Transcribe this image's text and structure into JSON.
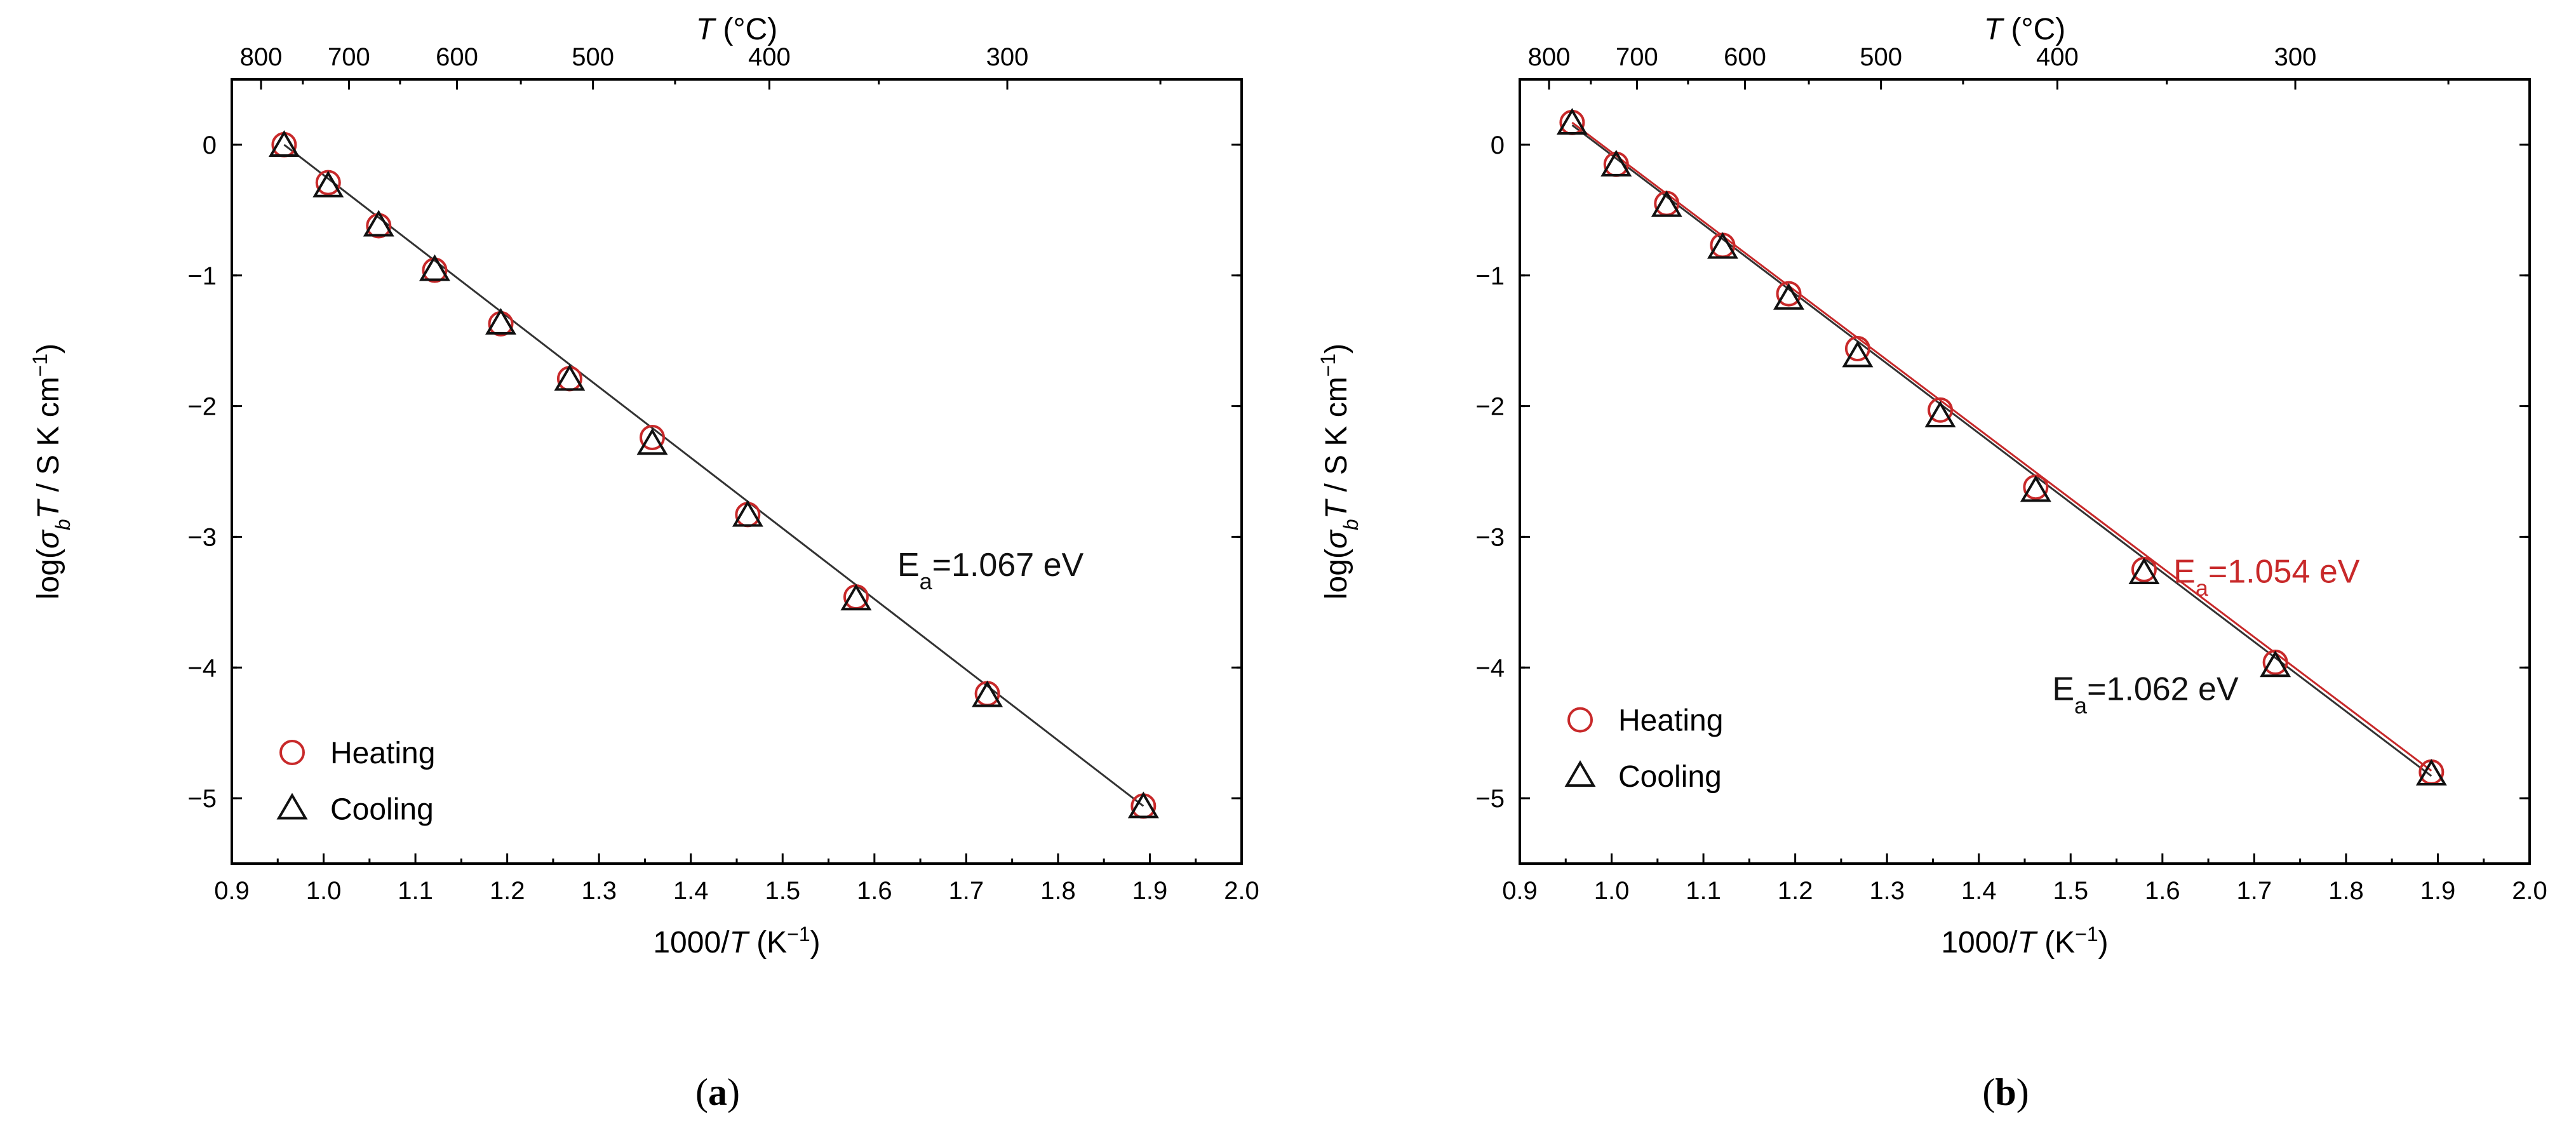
{
  "colors": {
    "heating": "#c8292a",
    "cooling": "#111111",
    "axis": "#000000",
    "fit_heating": "#c8292a",
    "fit_cooling": "#333333"
  },
  "chart_data": [
    {
      "type": "scatter",
      "panel_label": "a",
      "xlabel": "1000/T (K−1)",
      "ylabel": "log(σbT / S K cm−1)",
      "top_xlabel": "T (°C)",
      "xlim": [
        0.9,
        2.0
      ],
      "ylim": [
        -5.5,
        0.5
      ],
      "x_ticks": [
        0.9,
        1.0,
        1.1,
        1.2,
        1.3,
        1.4,
        1.5,
        1.6,
        1.7,
        1.8,
        1.9,
        2.0
      ],
      "x_tick_labels": [
        "0.9",
        "1.0",
        "1.1",
        "1.2",
        "1.3",
        "1.4",
        "1.5",
        "1.6",
        "1.7",
        "1.8",
        "1.9",
        "2.0"
      ],
      "y_ticks": [
        0,
        -1,
        -2,
        -3,
        -4,
        -5
      ],
      "y_tick_labels": [
        "0",
        "−1",
        "−2",
        "−3",
        "−4",
        "−5"
      ],
      "top_ticks_celsius": [
        800,
        700,
        600,
        500,
        400,
        300
      ],
      "top_tick_labels": [
        "800",
        "700",
        "600",
        "500",
        "400",
        "300"
      ],
      "legend": {
        "position": "bottom-left",
        "entries": [
          "Heating",
          "Cooling"
        ]
      },
      "series": [
        {
          "name": "Heating",
          "marker": "circle",
          "color": "#c8292a",
          "x": [
            0.957,
            1.005,
            1.06,
            1.121,
            1.193,
            1.268,
            1.358,
            1.462,
            1.58,
            1.723,
            1.893
          ],
          "y": [
            0.0,
            -0.29,
            -0.62,
            -0.96,
            -1.37,
            -1.79,
            -2.24,
            -2.83,
            -3.46,
            -4.2,
            -5.06
          ]
        },
        {
          "name": "Cooling",
          "marker": "triangle",
          "color": "#111111",
          "x": [
            0.957,
            1.005,
            1.06,
            1.121,
            1.193,
            1.268,
            1.358,
            1.462,
            1.58,
            1.723,
            1.893
          ],
          "y": [
            -0.01,
            -0.32,
            -0.62,
            -0.96,
            -1.37,
            -1.8,
            -2.29,
            -2.84,
            -3.48,
            -4.22,
            -5.07
          ]
        }
      ],
      "fits": [
        {
          "name": "fit",
          "color": "#333333",
          "x": [
            0.957,
            1.893
          ],
          "y": [
            0.0,
            -5.06
          ]
        }
      ],
      "annotations": [
        {
          "text": "1.067 eV",
          "color": "#111111",
          "x": 1.625,
          "y": -3.3
        }
      ]
    },
    {
      "type": "scatter",
      "panel_label": "b",
      "xlabel": "1000/T (K−1)",
      "ylabel": "log(σbT / S K cm−1)",
      "top_xlabel": "T (°C)",
      "xlim": [
        0.9,
        2.0
      ],
      "ylim": [
        -5.5,
        0.5
      ],
      "x_ticks": [
        0.9,
        1.0,
        1.1,
        1.2,
        1.3,
        1.4,
        1.5,
        1.6,
        1.7,
        1.8,
        1.9,
        2.0
      ],
      "x_tick_labels": [
        "0.9",
        "1.0",
        "1.1",
        "1.2",
        "1.3",
        "1.4",
        "1.5",
        "1.6",
        "1.7",
        "1.8",
        "1.9",
        "2.0"
      ],
      "y_ticks": [
        0,
        -1,
        -2,
        -3,
        -4,
        -5
      ],
      "y_tick_labels": [
        "0",
        "−1",
        "−2",
        "−3",
        "−4",
        "−5"
      ],
      "top_ticks_celsius": [
        800,
        700,
        600,
        500,
        400,
        300
      ],
      "top_tick_labels": [
        "800",
        "700",
        "600",
        "500",
        "400",
        "300"
      ],
      "legend": {
        "position": "bottom-left",
        "entries": [
          "Heating",
          "Cooling"
        ]
      },
      "series": [
        {
          "name": "Heating",
          "marker": "circle",
          "color": "#c8292a",
          "x": [
            0.957,
            1.005,
            1.06,
            1.121,
            1.193,
            1.268,
            1.358,
            1.462,
            1.58,
            1.723,
            1.893
          ],
          "y": [
            0.17,
            -0.15,
            -0.45,
            -0.77,
            -1.14,
            -1.56,
            -2.03,
            -2.62,
            -3.25,
            -3.96,
            -4.8
          ]
        },
        {
          "name": "Cooling",
          "marker": "triangle",
          "color": "#111111",
          "x": [
            0.957,
            1.005,
            1.06,
            1.121,
            1.193,
            1.268,
            1.358,
            1.462,
            1.58,
            1.723,
            1.893
          ],
          "y": [
            0.16,
            -0.16,
            -0.47,
            -0.79,
            -1.18,
            -1.62,
            -2.08,
            -2.65,
            -3.28,
            -3.99,
            -4.82
          ]
        }
      ],
      "fits": [
        {
          "name": "Heating fit",
          "color": "#c8292a",
          "x": [
            0.957,
            1.893
          ],
          "y": [
            0.17,
            -4.79
          ]
        },
        {
          "name": "Cooling fit",
          "color": "#333333",
          "x": [
            0.957,
            1.893
          ],
          "y": [
            0.15,
            -4.83
          ]
        }
      ],
      "annotations": [
        {
          "text": "1.054 eV",
          "color": "#c8292a",
          "x": 1.612,
          "y": -3.35
        },
        {
          "text": "1.062 eV",
          "color": "#111111",
          "x": 1.48,
          "y": -4.25
        }
      ]
    }
  ]
}
